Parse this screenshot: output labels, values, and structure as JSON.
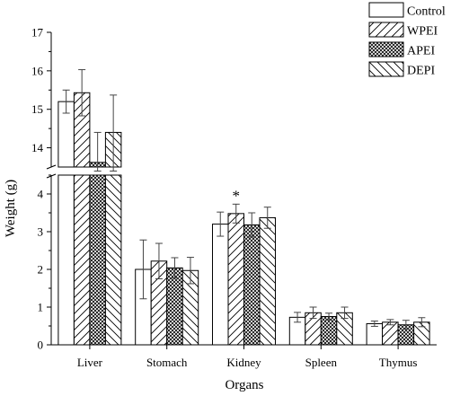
{
  "chart_data": {
    "type": "bar",
    "title": "",
    "xlabel": "Organs",
    "ylabel": "Weight (g)",
    "y_axis_break": true,
    "ylim_lower": [
      0,
      4.5
    ],
    "ylim_upper": [
      13.5,
      17
    ],
    "yticks_lower": [
      "0",
      "1",
      "2",
      "3",
      "4"
    ],
    "yticks_upper": [
      "14",
      "15",
      "16",
      "17"
    ],
    "categories": [
      "Liver",
      "Stomach",
      "Kidney",
      "Spleen",
      "Thymus"
    ],
    "series": [
      {
        "name": "Control",
        "pattern": "plain",
        "values": [
          15.2,
          2.0,
          3.2,
          0.73,
          0.56
        ],
        "errors": [
          0.3,
          0.78,
          0.32,
          0.13,
          0.07
        ]
      },
      {
        "name": "WPEI",
        "pattern": "forward-hatch",
        "values": [
          15.43,
          2.22,
          3.48,
          0.85,
          0.6
        ],
        "errors": [
          0.6,
          0.47,
          0.25,
          0.15,
          0.07
        ]
      },
      {
        "name": "APEI",
        "pattern": "crosshatch",
        "values": [
          13.62,
          2.04,
          3.18,
          0.75,
          0.53
        ],
        "errors": [
          0.78,
          0.27,
          0.32,
          0.09,
          0.12
        ]
      },
      {
        "name": "DEPI",
        "pattern": "back-hatch",
        "values": [
          14.4,
          1.97,
          3.37,
          0.85,
          0.6
        ],
        "errors": [
          0.97,
          0.35,
          0.28,
          0.15,
          0.12
        ]
      }
    ],
    "annotations": [
      {
        "category": "Kidney",
        "series": "WPEI",
        "text": "*"
      }
    ],
    "legend": "top-right",
    "grid": false
  }
}
